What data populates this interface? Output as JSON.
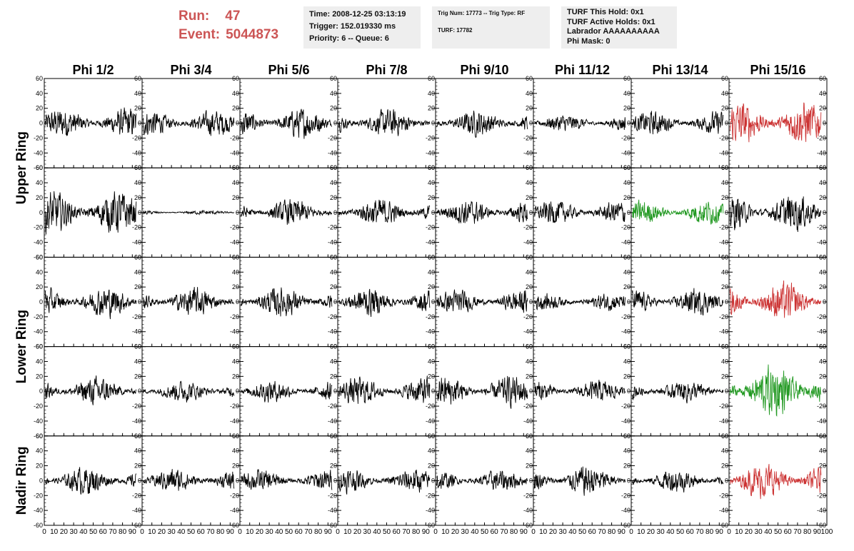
{
  "header": {
    "run_label": "Run:",
    "run_value": "47",
    "event_label": "Event:",
    "event_value": "5044873",
    "time": "Time: 2008-12-25 03:13:19",
    "trigger": "Trigger: 152.019330 ms",
    "priority": "Priority: 6 -- Queue: 6",
    "trig_num": "Trig Num: 17773 -- Trig Type: RF",
    "turf": "TURF: 17782",
    "turf_this_hold": "TURF This Hold: 0x1",
    "turf_active_holds": "TURF Active Holds: 0x1",
    "labrador": "Labrador AAAAAAAAAA",
    "phi_mask": "Phi Mask: 0"
  },
  "chart_data": {
    "type": "line",
    "columns": [
      "Phi 1/2",
      "Phi 3/4",
      "Phi 5/6",
      "Phi 7/8",
      "Phi 9/10",
      "Phi 11/12",
      "Phi 13/14",
      "Phi 15/16"
    ],
    "row_groups": [
      {
        "label": "Upper Ring",
        "rows": [
          0,
          1
        ]
      },
      {
        "label": "Lower Ring",
        "rows": [
          2,
          3
        ]
      },
      {
        "label": "Nadir Ring",
        "rows": [
          4
        ]
      }
    ],
    "xlim": [
      0,
      100
    ],
    "ylim": [
      -60,
      60
    ],
    "x_ticks": [
      0,
      10,
      20,
      30,
      40,
      50,
      60,
      70,
      80,
      90,
      100
    ],
    "y_ticks": [
      -60,
      -40,
      -20,
      0,
      20,
      40,
      60
    ],
    "colors": {
      "normal": "#000000",
      "red": "#cc3333",
      "green": "#229922"
    },
    "panels": [
      [
        {
          "c": "normal",
          "amp": 14
        },
        {
          "c": "normal",
          "amp": 12
        },
        {
          "c": "normal",
          "amp": 14
        },
        {
          "c": "normal",
          "amp": 13
        },
        {
          "c": "normal",
          "amp": 12
        },
        {
          "c": "normal",
          "amp": 8
        },
        {
          "c": "normal",
          "amp": 11
        },
        {
          "c": "red",
          "amp": 20
        }
      ],
      [
        {
          "c": "normal",
          "amp": 20
        },
        {
          "c": "normal",
          "amp": 2
        },
        {
          "c": "normal",
          "amp": 12
        },
        {
          "c": "normal",
          "amp": 13
        },
        {
          "c": "normal",
          "amp": 12
        },
        {
          "c": "normal",
          "amp": 11
        },
        {
          "c": "green",
          "amp": 11
        },
        {
          "c": "normal",
          "amp": 17
        }
      ],
      [
        {
          "c": "normal",
          "amp": 14
        },
        {
          "c": "normal",
          "amp": 13
        },
        {
          "c": "normal",
          "amp": 14
        },
        {
          "c": "normal",
          "amp": 13
        },
        {
          "c": "normal",
          "amp": 11
        },
        {
          "c": "normal",
          "amp": 8
        },
        {
          "c": "normal",
          "amp": 12
        },
        {
          "c": "red",
          "amp": 18
        }
      ],
      [
        {
          "c": "normal",
          "amp": 13
        },
        {
          "c": "normal",
          "amp": 10
        },
        {
          "c": "normal",
          "amp": 10
        },
        {
          "c": "normal",
          "amp": 13
        },
        {
          "c": "normal",
          "amp": 14
        },
        {
          "c": "normal",
          "amp": 10
        },
        {
          "c": "normal",
          "amp": 10
        },
        {
          "c": "green",
          "amp": 24
        }
      ],
      [
        {
          "c": "normal",
          "amp": 13
        },
        {
          "c": "normal",
          "amp": 11
        },
        {
          "c": "normal",
          "amp": 10
        },
        {
          "c": "normal",
          "amp": 11
        },
        {
          "c": "normal",
          "amp": 10
        },
        {
          "c": "normal",
          "amp": 14
        },
        {
          "c": "normal",
          "amp": 11
        },
        {
          "c": "red",
          "amp": 16
        }
      ]
    ]
  }
}
